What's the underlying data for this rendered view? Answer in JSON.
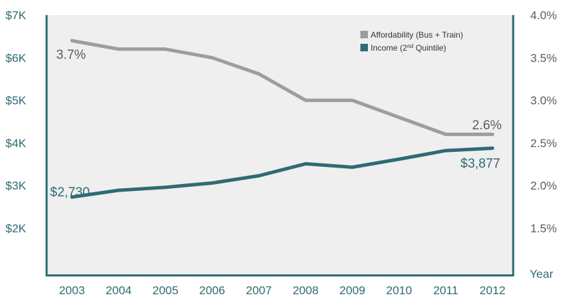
{
  "chart_data": {
    "type": "line",
    "x": [
      "2003",
      "2004",
      "2005",
      "2006",
      "2007",
      "2008",
      "2009",
      "2010",
      "2011",
      "2012"
    ],
    "xlabel": "Year",
    "y_left": {
      "ylim": [
        1,
        7
      ],
      "ticks": [
        "$2K",
        "$3K",
        "$4K",
        "$5K",
        "$6K",
        "$7K"
      ],
      "tick_values": [
        2,
        3,
        4,
        5,
        6,
        7
      ]
    },
    "y_right": {
      "ylim": [
        1.0,
        4.0
      ],
      "ticks": [
        "1.5%",
        "2.0%",
        "2.5%",
        "3.0%",
        "3.5%",
        "4.0%"
      ],
      "tick_values": [
        1.5,
        2.0,
        2.5,
        3.0,
        3.5,
        4.0
      ]
    },
    "series": [
      {
        "name": "Affordability (Bus + Train)",
        "axis": "right",
        "color": "#9d9d9d",
        "values": [
          3.7,
          3.6,
          3.6,
          3.5,
          3.31,
          3.0,
          3.0,
          2.8,
          2.6,
          2.6
        ]
      },
      {
        "name_main": "Income (2",
        "name_sup": "nd",
        "name_rest": " Quintile)",
        "axis": "left",
        "color": "#2f6b72",
        "values": [
          2730,
          2890,
          2960,
          3060,
          3230,
          3510,
          3430,
          3620,
          3820,
          3877
        ]
      }
    ],
    "annotations": {
      "afford_start": "3.7%",
      "afford_end": "2.6%",
      "income_start": "$2,730",
      "income_end": "$3,877"
    },
    "grid": false,
    "legend_position": "top-right"
  }
}
